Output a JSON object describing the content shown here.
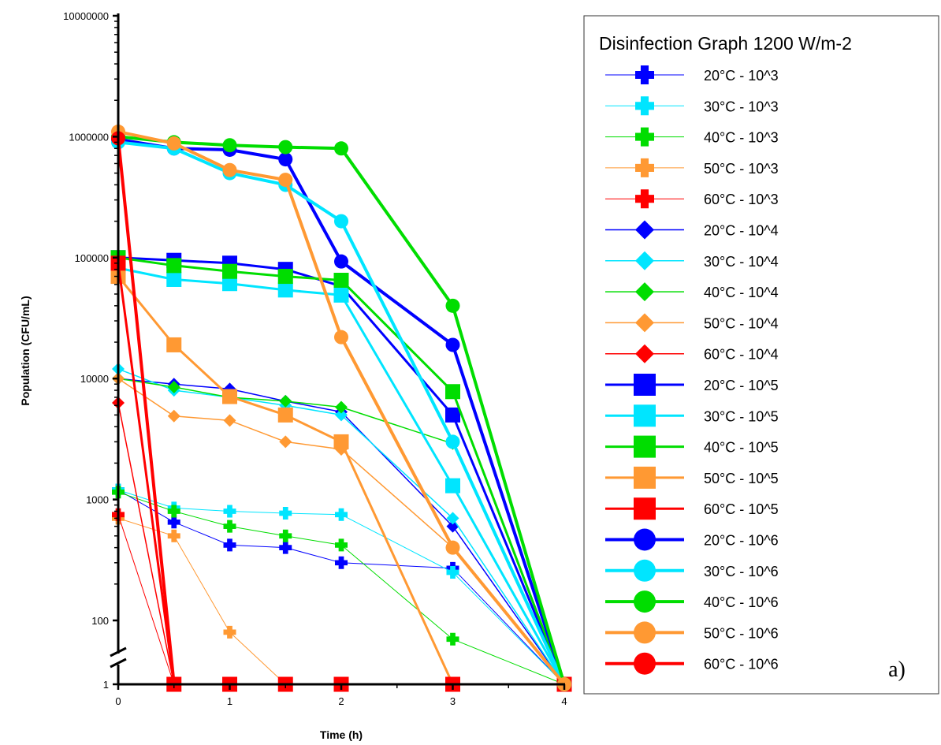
{
  "chart_data": {
    "type": "line",
    "title": "",
    "xlabel": "Time (h)",
    "ylabel": "Population (CFU/mL)",
    "x_ticks": [
      "0",
      "1",
      "2",
      "3",
      "4"
    ],
    "y_ticks": [
      "1",
      "100",
      "1000",
      "10000",
      "100000",
      "1000000",
      "10000000"
    ],
    "y_scale": "log with axis break between 1 and 100",
    "xlim": [
      0,
      4
    ],
    "ylim": [
      1,
      10000000
    ],
    "grid": false,
    "legend_title": "Disinfection Graph 1200 W/m-2",
    "legend_placement": "right",
    "panel_label": "a)",
    "series": [
      {
        "name": "20°C - 10^3",
        "color": "#0000ff",
        "marker": "plus",
        "width": 1,
        "x": [
          0,
          0.5,
          1,
          1.5,
          2,
          3,
          4
        ],
        "y": [
          1200,
          650,
          420,
          400,
          300,
          270,
          1
        ]
      },
      {
        "name": "30°C - 10^3",
        "color": "#00e5ff",
        "marker": "plus",
        "width": 1,
        "x": [
          0,
          0.5,
          1,
          1.5,
          2,
          3,
          4
        ],
        "y": [
          1200,
          850,
          800,
          770,
          750,
          250,
          1
        ]
      },
      {
        "name": "40°C - 10^3",
        "color": "#00dd00",
        "marker": "plus",
        "width": 1,
        "x": [
          0,
          0.5,
          1,
          1.5,
          2,
          3,
          4
        ],
        "y": [
          1150,
          800,
          600,
          500,
          420,
          70,
          1
        ]
      },
      {
        "name": "50°C - 10^3",
        "color": "#ff9933",
        "marker": "plus",
        "width": 1,
        "x": [
          0,
          0.5,
          1,
          1.5
        ],
        "y": [
          700,
          500,
          80,
          1
        ]
      },
      {
        "name": "60°C - 10^3",
        "color": "#ff0000",
        "marker": "plus",
        "width": 1,
        "x": [
          0,
          0.5
        ],
        "y": [
          750,
          1
        ]
      },
      {
        "name": "20°C - 10^4",
        "color": "#0000ff",
        "marker": "diamond",
        "width": 1.5,
        "x": [
          0,
          0.5,
          1,
          1.5,
          2,
          3,
          4
        ],
        "y": [
          10000,
          9000,
          8200,
          6500,
          5300,
          600,
          1
        ]
      },
      {
        "name": "30°C - 10^4",
        "color": "#00e5ff",
        "marker": "diamond",
        "width": 1.5,
        "x": [
          0,
          0.5,
          1,
          1.5,
          2,
          3,
          4
        ],
        "y": [
          12000,
          8000,
          7000,
          6000,
          5000,
          700,
          1
        ]
      },
      {
        "name": "40°C - 10^4",
        "color": "#00dd00",
        "marker": "diamond",
        "width": 1.5,
        "x": [
          0,
          0.5,
          1,
          1.5,
          2,
          3,
          4
        ],
        "y": [
          10000,
          8500,
          7000,
          6500,
          5800,
          2900,
          1
        ]
      },
      {
        "name": "50°C - 10^4",
        "color": "#ff9933",
        "marker": "diamond",
        "width": 1.5,
        "x": [
          0,
          0.5,
          1,
          1.5,
          2,
          3,
          4
        ],
        "y": [
          10000,
          4900,
          4500,
          3000,
          2600,
          400,
          1
        ]
      },
      {
        "name": "60°C - 10^4",
        "color": "#ff0000",
        "marker": "diamond",
        "width": 1.5,
        "x": [
          0,
          0.5
        ],
        "y": [
          6300,
          1
        ]
      },
      {
        "name": "20°C - 10^5",
        "color": "#0000ff",
        "marker": "square",
        "width": 3,
        "x": [
          0,
          0.5,
          1,
          1.5,
          2,
          3,
          4
        ],
        "y": [
          100000,
          95000,
          90000,
          80000,
          58000,
          5000,
          1
        ]
      },
      {
        "name": "30°C - 10^5",
        "color": "#00e5ff",
        "marker": "square",
        "width": 3,
        "x": [
          0,
          0.5,
          1,
          1.5,
          2,
          3,
          4
        ],
        "y": [
          82000,
          66000,
          61000,
          54000,
          49000,
          1300,
          1
        ]
      },
      {
        "name": "40°C - 10^5",
        "color": "#00dd00",
        "marker": "square",
        "width": 3,
        "x": [
          0,
          0.5,
          1,
          1.5,
          2,
          3,
          4
        ],
        "y": [
          100000,
          86000,
          77000,
          70000,
          65000,
          7800,
          1
        ]
      },
      {
        "name": "50°C - 10^5",
        "color": "#ff9933",
        "marker": "square",
        "width": 3,
        "x": [
          0,
          0.5,
          1,
          1.5,
          2,
          3
        ],
        "y": [
          70000,
          19000,
          7100,
          5000,
          3000,
          1
        ]
      },
      {
        "name": "60°C - 10^5",
        "color": "#ff0000",
        "marker": "square",
        "width": 3,
        "x": [
          0,
          0.5,
          1,
          1.5,
          2,
          3,
          4
        ],
        "y": [
          90000,
          1,
          1,
          1,
          1,
          1,
          1
        ]
      },
      {
        "name": "20°C - 10^6",
        "color": "#0000ff",
        "marker": "circle",
        "width": 4,
        "x": [
          0,
          0.5,
          1,
          1.5,
          2,
          3,
          4
        ],
        "y": [
          950000,
          800000,
          780000,
          650000,
          93000,
          19000,
          1
        ]
      },
      {
        "name": "30°C - 10^6",
        "color": "#00e5ff",
        "marker": "circle",
        "width": 4,
        "x": [
          0,
          0.5,
          1,
          1.5,
          2,
          3,
          4
        ],
        "y": [
          900000,
          800000,
          500000,
          400000,
          200000,
          3000,
          1
        ]
      },
      {
        "name": "40°C - 10^6",
        "color": "#00dd00",
        "marker": "circle",
        "width": 4,
        "x": [
          0,
          0.5,
          1,
          1.5,
          2,
          3,
          4
        ],
        "y": [
          1000000,
          900000,
          850000,
          820000,
          800000,
          40000,
          1
        ]
      },
      {
        "name": "50°C - 10^6",
        "color": "#ff9933",
        "marker": "circle",
        "width": 4,
        "x": [
          0,
          0.5,
          1,
          1.5,
          2,
          3,
          4
        ],
        "y": [
          1100000,
          880000,
          530000,
          440000,
          22000,
          400,
          1
        ]
      },
      {
        "name": "60°C - 10^6",
        "color": "#ff0000",
        "marker": "circle",
        "width": 4,
        "x": [
          0,
          0.5
        ],
        "y": [
          970000,
          1
        ]
      }
    ]
  }
}
